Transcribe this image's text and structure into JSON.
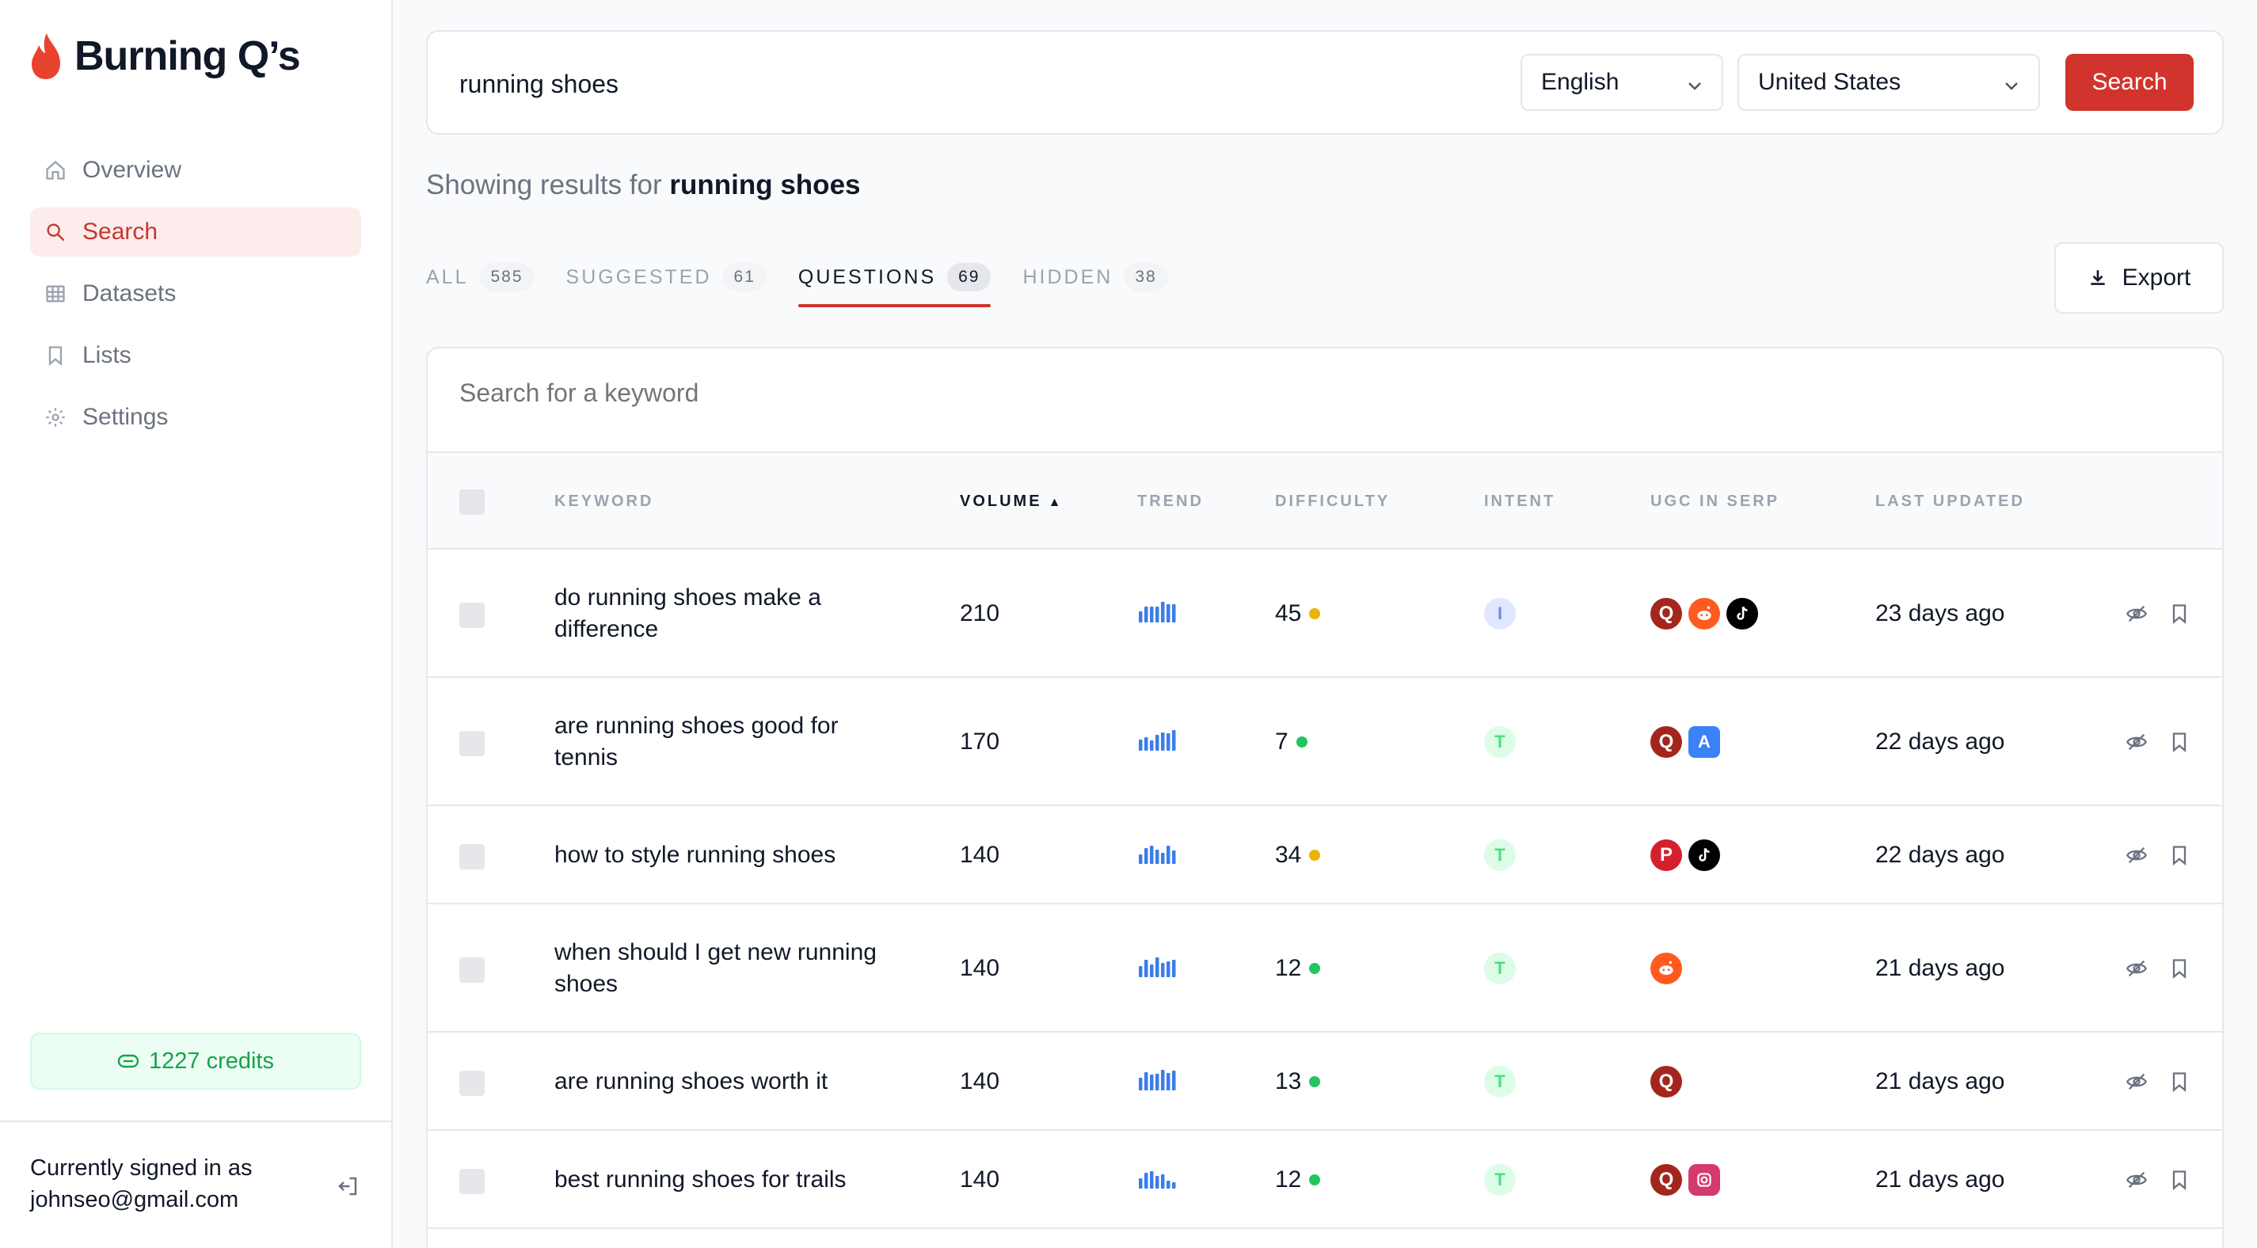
{
  "brand": {
    "name": "Burning Q’s",
    "color": "#e8432f"
  },
  "sidebar": {
    "items": [
      {
        "label": "Overview",
        "icon": "home-icon",
        "active": false
      },
      {
        "label": "Search",
        "icon": "search-icon",
        "active": true
      },
      {
        "label": "Datasets",
        "icon": "table-icon",
        "active": false
      },
      {
        "label": "Lists",
        "icon": "bookmark-icon",
        "active": false
      },
      {
        "label": "Settings",
        "icon": "gear-icon",
        "active": false
      }
    ],
    "credits": "1227 credits",
    "signed_in_label": "Currently signed in as",
    "email": "johnseo@gmail.com"
  },
  "search": {
    "query": "running shoes",
    "language": "English",
    "country": "United States",
    "button": "Search"
  },
  "results": {
    "prefix": "Showing results for",
    "query": "running shoes"
  },
  "tabs": [
    {
      "label": "ALL",
      "count": "585"
    },
    {
      "label": "SUGGESTED",
      "count": "61"
    },
    {
      "label": "QUESTIONS",
      "count": "69",
      "active": true
    },
    {
      "label": "HIDDEN",
      "count": "38"
    }
  ],
  "export_label": "Export",
  "table": {
    "search_placeholder": "Search for a keyword",
    "headers": {
      "keyword": "KEYWORD",
      "volume": "VOLUME",
      "trend": "TREND",
      "difficulty": "DIFFICULTY",
      "intent": "INTENT",
      "ugc": "UGC IN SERP",
      "updated": "LAST UPDATED"
    },
    "sort_arrow": "▲",
    "rows": [
      {
        "keyword": "do running shoes make a difference",
        "volume": "210",
        "difficulty": "45",
        "difficulty_color": "#eab308",
        "intent": "I",
        "ugc": [
          "quora",
          "reddit",
          "tiktok"
        ],
        "updated": "23 days ago"
      },
      {
        "keyword": "are running shoes good for tennis",
        "volume": "170",
        "difficulty": "7",
        "difficulty_color": "#22c55e",
        "intent": "T",
        "ugc": [
          "quora",
          "appstore"
        ],
        "updated": "22 days ago"
      },
      {
        "keyword": "how to style running shoes",
        "volume": "140",
        "difficulty": "34",
        "difficulty_color": "#eab308",
        "intent": "T",
        "ugc": [
          "pinterest",
          "tiktok"
        ],
        "updated": "22 days ago"
      },
      {
        "keyword": "when should I get new running shoes",
        "volume": "140",
        "difficulty": "12",
        "difficulty_color": "#22c55e",
        "intent": "T",
        "ugc": [
          "reddit"
        ],
        "updated": "21 days ago"
      },
      {
        "keyword": "are running shoes worth it",
        "volume": "140",
        "difficulty": "13",
        "difficulty_color": "#22c55e",
        "intent": "T",
        "ugc": [
          "quora"
        ],
        "updated": "21 days ago"
      },
      {
        "keyword": "best running shoes for trails",
        "volume": "140",
        "difficulty": "12",
        "difficulty_color": "#22c55e",
        "intent": "T",
        "ugc": [
          "quora",
          "instagram"
        ],
        "updated": "21 days ago"
      }
    ]
  }
}
